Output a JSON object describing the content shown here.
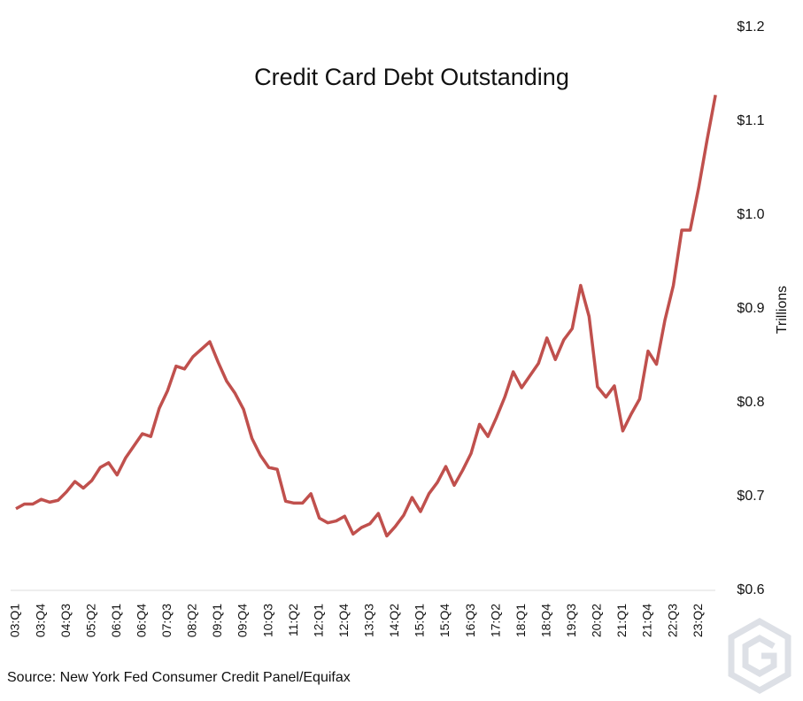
{
  "chart_data": {
    "type": "line",
    "title": "Credit Card Debt Outstanding",
    "y_axis_label": "Trillions",
    "source": "Source: New York Fed Consumer Credit Panel/Equifax",
    "categories": [
      "03:Q1",
      null,
      null,
      "03:Q4",
      null,
      null,
      "04:Q3",
      null,
      null,
      "05:Q2",
      null,
      null,
      "06:Q1",
      null,
      null,
      "06:Q4",
      null,
      null,
      "07:Q3",
      null,
      null,
      "08:Q2",
      null,
      null,
      "09:Q1",
      null,
      null,
      "09:Q4",
      null,
      null,
      "10:Q3",
      null,
      null,
      "11:Q2",
      null,
      null,
      "12:Q1",
      null,
      null,
      "12:Q4",
      null,
      null,
      "13:Q3",
      null,
      null,
      "14:Q2",
      null,
      null,
      "15:Q1",
      null,
      null,
      "15:Q4",
      null,
      null,
      "16:Q3",
      null,
      null,
      "17:Q2",
      null,
      null,
      "18:Q1",
      null,
      null,
      "18:Q4",
      null,
      null,
      "19:Q3",
      null,
      null,
      "20:Q2",
      null,
      null,
      "21:Q1",
      null,
      null,
      "21:Q4",
      null,
      null,
      "22:Q3",
      null,
      null,
      "23:Q2",
      null,
      null
    ],
    "series": [
      {
        "name": "Credit Card Debt",
        "color": "#c0504d",
        "values": [
          0.687,
          0.692,
          0.692,
          0.697,
          0.694,
          0.696,
          0.705,
          0.716,
          0.709,
          0.717,
          0.731,
          0.736,
          0.723,
          0.741,
          0.754,
          0.767,
          0.764,
          0.794,
          0.813,
          0.839,
          0.836,
          0.849,
          0.857,
          0.865,
          0.843,
          0.823,
          0.81,
          0.793,
          0.762,
          0.744,
          0.731,
          0.729,
          0.695,
          0.693,
          0.693,
          0.703,
          0.677,
          0.672,
          0.674,
          0.679,
          0.66,
          0.667,
          0.671,
          0.682,
          0.658,
          0.668,
          0.68,
          0.699,
          0.684,
          0.703,
          0.715,
          0.732,
          0.712,
          0.728,
          0.746,
          0.777,
          0.764,
          0.784,
          0.806,
          0.833,
          0.816,
          0.829,
          0.842,
          0.869,
          0.846,
          0.867,
          0.879,
          0.925,
          0.892,
          0.817,
          0.806,
          0.818,
          0.77,
          0.788,
          0.804,
          0.855,
          0.841,
          0.888,
          0.925,
          0.984,
          0.984,
          1.029,
          1.08,
          1.128
        ]
      }
    ],
    "ylim": [
      0.6,
      1.2
    ],
    "yticks": [
      {
        "value": 0.6,
        "label": "$0.6"
      },
      {
        "value": 0.7,
        "label": "$0.7"
      },
      {
        "value": 0.8,
        "label": "$0.8"
      },
      {
        "value": 0.9,
        "label": "$0.9"
      },
      {
        "value": 1.0,
        "label": "$1.0"
      },
      {
        "value": 1.1,
        "label": "$1.1"
      },
      {
        "value": 1.2,
        "label": "$1.2"
      }
    ],
    "grid": false
  }
}
